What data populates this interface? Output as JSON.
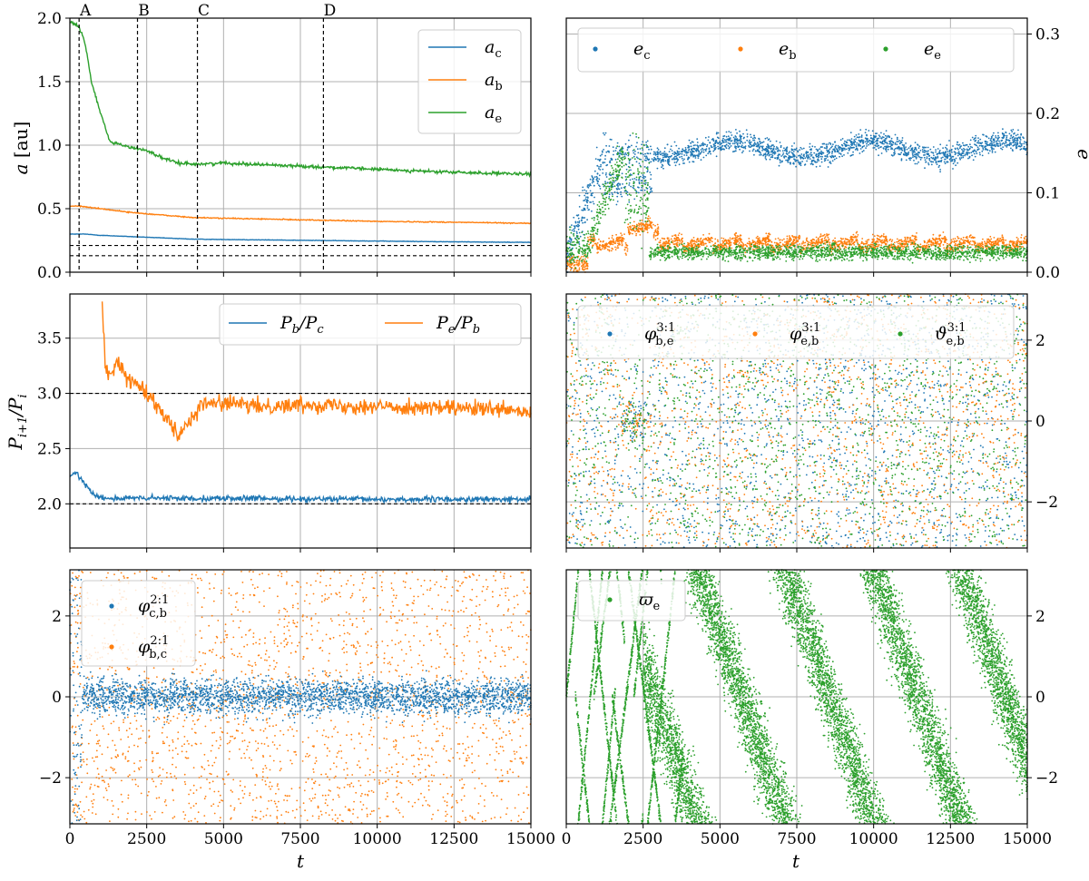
{
  "colors": {
    "blue": "#1f77b4",
    "orange": "#ff7f0e",
    "green": "#2ca02c",
    "grid": "#b0b0b0"
  },
  "chart_data": [
    {
      "id": "semi-major-axis",
      "type": "line",
      "ylabel": "a [au]",
      "xlim": [
        0,
        15000
      ],
      "ylim": [
        0,
        2.0
      ],
      "xticks": [
        0,
        2500,
        5000,
        7500,
        10000,
        12500,
        15000
      ],
      "yticks": [
        0.0,
        0.5,
        1.0,
        1.5,
        2.0
      ],
      "ytick_labels": [
        "0.0",
        "0.5",
        "1.0",
        "1.5",
        "2.0"
      ],
      "grid": true,
      "legend": "top-right",
      "markers": [
        {
          "label": "A",
          "x": 300
        },
        {
          "label": "B",
          "x": 2200
        },
        {
          "label": "C",
          "x": 4150
        },
        {
          "label": "D",
          "x": 8250
        }
      ],
      "hlines": [
        0.21,
        0.13
      ],
      "series": [
        {
          "name": "a_c",
          "legend_main": "a",
          "legend_sub": "c",
          "color": "blue",
          "x": [
            0,
            500,
            1000,
            2000,
            3000,
            4000,
            6000,
            8000,
            10000,
            12000,
            15000
          ],
          "y": [
            0.3,
            0.3,
            0.29,
            0.28,
            0.27,
            0.26,
            0.255,
            0.25,
            0.245,
            0.24,
            0.235
          ]
        },
        {
          "name": "a_b",
          "legend_main": "a",
          "legend_sub": "b",
          "color": "orange",
          "x": [
            0,
            300,
            1000,
            2000,
            3000,
            4000,
            6000,
            8000,
            10000,
            12000,
            15000
          ],
          "y": [
            0.52,
            0.52,
            0.5,
            0.47,
            0.45,
            0.43,
            0.42,
            0.41,
            0.4,
            0.395,
            0.385
          ]
        },
        {
          "name": "a_e",
          "legend_main": "a",
          "legend_sub": "e",
          "color": "green",
          "x": [
            0,
            300,
            500,
            700,
            1000,
            1300,
            2000,
            2500,
            3000,
            3500,
            4200,
            5000,
            6000,
            8000,
            10000,
            12000,
            15000
          ],
          "y": [
            1.97,
            1.93,
            1.8,
            1.5,
            1.25,
            1.03,
            0.98,
            0.96,
            0.9,
            0.86,
            0.85,
            0.86,
            0.85,
            0.83,
            0.81,
            0.79,
            0.77
          ]
        }
      ]
    },
    {
      "id": "eccentricity",
      "type": "scatter",
      "ylabel": "e",
      "xlim": [
        0,
        15000
      ],
      "ylim": [
        0,
        0.32
      ],
      "xticks": [
        0,
        2500,
        5000,
        7500,
        10000,
        12500,
        15000
      ],
      "yticks": [
        0.0,
        0.1,
        0.2,
        0.3
      ],
      "ytick_labels": [
        "0.0",
        "0.1",
        "0.2",
        "0.3"
      ],
      "yaxis_side": "right",
      "grid": true,
      "legend": "top-left",
      "series": [
        {
          "name": "e_c",
          "legend_main": "e",
          "legend_sub": "c",
          "color": "blue"
        },
        {
          "name": "e_b",
          "legend_main": "e",
          "legend_sub": "b",
          "color": "orange"
        },
        {
          "name": "e_e",
          "legend_main": "e",
          "legend_sub": "e",
          "color": "green"
        }
      ]
    },
    {
      "id": "period-ratio",
      "type": "line",
      "ylabel": "P_{i+1}/P_i",
      "xlim": [
        0,
        15000
      ],
      "ylim": [
        1.6,
        3.9
      ],
      "xticks": [
        0,
        2500,
        5000,
        7500,
        10000,
        12500,
        15000
      ],
      "yticks": [
        2.0,
        2.5,
        3.0,
        3.5
      ],
      "ytick_labels": [
        "2.0",
        "2.5",
        "3.0",
        "3.5"
      ],
      "grid": true,
      "legend": "top-right",
      "hlines": [
        3.0,
        2.0
      ],
      "series": [
        {
          "name": "P_b/P_c",
          "legend_a": "P",
          "legend_a_sub": "b",
          "legend_b": "P",
          "legend_b_sub": "c",
          "color": "blue",
          "x": [
            0,
            200,
            500,
            800,
            1200,
            2000,
            5000,
            10000,
            15000
          ],
          "y": [
            2.25,
            2.28,
            2.18,
            2.08,
            2.05,
            2.05,
            2.05,
            2.04,
            2.04
          ]
        },
        {
          "name": "P_e/P_b",
          "legend_a": "P",
          "legend_a_sub": "e",
          "legend_b": "P",
          "legend_b_sub": "b",
          "color": "orange",
          "x": [
            1050,
            1150,
            1250,
            1500,
            2000,
            2300,
            2800,
            3200,
            3500,
            3800,
            4300,
            5000,
            6000,
            8000,
            10000,
            12000,
            14000,
            15000
          ],
          "y": [
            3.85,
            3.25,
            3.15,
            3.28,
            3.1,
            3.08,
            2.9,
            2.78,
            2.62,
            2.72,
            2.9,
            2.92,
            2.88,
            2.9,
            2.88,
            2.87,
            2.85,
            2.82
          ]
        }
      ]
    },
    {
      "id": "resonant-angles-3-1",
      "type": "scatter",
      "xlim": [
        0,
        15000
      ],
      "ylim": [
        -3.14159,
        3.14159
      ],
      "xticks": [
        0,
        2500,
        5000,
        7500,
        10000,
        12500,
        15000
      ],
      "yticks": [
        -2,
        0,
        2
      ],
      "ytick_labels": [
        "−2",
        "0",
        "2"
      ],
      "yaxis_side": "right",
      "grid": true,
      "legend": "top",
      "series": [
        {
          "name": "varphi_be_31",
          "legend_main": "φ",
          "legend_sup": "3:1",
          "legend_sub": "b,e",
          "color": "blue"
        },
        {
          "name": "varphi_eb_31",
          "legend_main": "φ",
          "legend_sup": "3:1",
          "legend_sub": "e,b",
          "color": "orange"
        },
        {
          "name": "vartheta_eb_31",
          "legend_main": "ϑ",
          "legend_sup": "3:1",
          "legend_sub": "e,b",
          "color": "green"
        }
      ]
    },
    {
      "id": "resonant-angles-2-1",
      "type": "scatter",
      "xlabel": "t",
      "xlim": [
        0,
        15000
      ],
      "ylim": [
        -3.14159,
        3.14159
      ],
      "xticks": [
        0,
        2500,
        5000,
        7500,
        10000,
        12500,
        15000
      ],
      "xtick_labels": [
        "0",
        "2500",
        "5000",
        "7500",
        "10000",
        "12500",
        "15000"
      ],
      "yticks": [
        -2,
        0,
        2
      ],
      "ytick_labels": [
        "−2",
        "0",
        "2"
      ],
      "grid": true,
      "legend": "top-left",
      "series": [
        {
          "name": "varphi_cb_21",
          "legend_main": "φ",
          "legend_sup": "2:1",
          "legend_sub": "c,b",
          "color": "blue"
        },
        {
          "name": "varphi_bc_21",
          "legend_main": "φ",
          "legend_sup": "2:1",
          "legend_sub": "b,c",
          "color": "orange"
        }
      ]
    },
    {
      "id": "longitude-of-pericentre",
      "type": "scatter",
      "xlabel": "t",
      "xlim": [
        0,
        15000
      ],
      "ylim": [
        -3.14159,
        3.14159
      ],
      "xticks": [
        0,
        2500,
        5000,
        7500,
        10000,
        12500,
        15000
      ],
      "xtick_labels": [
        "0",
        "2500",
        "5000",
        "7500",
        "10000",
        "12500",
        "15000"
      ],
      "yticks": [
        -2,
        0,
        2
      ],
      "ytick_labels": [
        "−2",
        "0",
        "2"
      ],
      "yaxis_side": "right",
      "grid": true,
      "legend": "top-left",
      "series": [
        {
          "name": "varpi_e",
          "legend_main": "ϖ",
          "legend_sub": "e",
          "color": "green"
        }
      ]
    }
  ]
}
